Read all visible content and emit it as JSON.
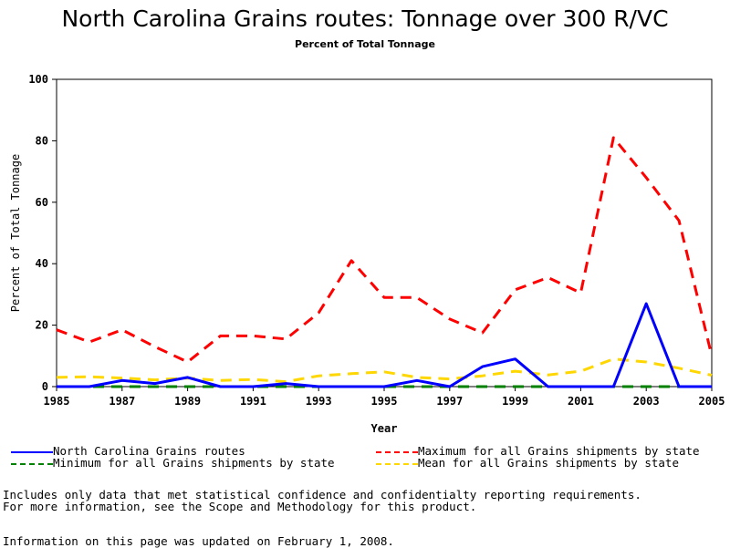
{
  "header": {
    "title": "North Carolina Grains routes: Tonnage over 300 R/VC",
    "subtitle": "Percent of Total Tonnage"
  },
  "chart_data": {
    "type": "line",
    "xlabel": "Year",
    "ylabel": "Percent of Total Tonnage",
    "xlim": [
      1985,
      2005
    ],
    "ylim": [
      0,
      100
    ],
    "x_ticks": [
      "1985",
      "1987",
      "1989",
      "1991",
      "1993",
      "1995",
      "1997",
      "1999",
      "2001",
      "2003",
      "2005"
    ],
    "y_ticks": [
      "0",
      "20",
      "40",
      "60",
      "80",
      "100"
    ],
    "grid": false,
    "legend_position": "bottom",
    "x": [
      1985,
      1986,
      1987,
      1988,
      1989,
      1990,
      1991,
      1992,
      1993,
      1994,
      1995,
      1996,
      1997,
      1998,
      1999,
      2000,
      2001,
      2002,
      2003,
      2004,
      2005
    ],
    "series": [
      {
        "name": "North Carolina Grains routes",
        "color": "#0000ff",
        "style": "solid",
        "values": [
          0,
          0,
          2,
          1,
          3,
          0,
          0,
          1,
          0,
          0,
          0,
          2,
          0,
          6.5,
          9,
          0,
          0,
          0,
          27,
          0,
          0
        ]
      },
      {
        "name": "Maximum for all Grains shipments by state",
        "color": "#ff0000",
        "style": "dashed",
        "values": [
          18.5,
          14.5,
          18.5,
          13,
          8,
          16.5,
          16.5,
          15.5,
          24,
          41,
          29,
          29,
          22,
          17.5,
          31.5,
          35.5,
          30.5,
          81,
          68,
          54,
          10
        ]
      },
      {
        "name": "Minimum for all Grains shipments by state",
        "color": "#008000",
        "style": "dashed",
        "values": [
          0,
          0,
          0,
          0,
          0,
          0,
          0,
          0,
          0,
          0,
          0,
          0,
          0,
          0,
          0,
          0,
          0,
          0,
          0,
          0,
          0
        ]
      },
      {
        "name": "Mean for all Grains shipments by state",
        "color": "#ffd700",
        "style": "dashed",
        "values": [
          3,
          3.2,
          2.8,
          2.2,
          2.8,
          2,
          2.3,
          1.6,
          3.5,
          4.2,
          4.8,
          3,
          2.5,
          3.5,
          5,
          3.8,
          5,
          9,
          8,
          6,
          3.7
        ]
      }
    ]
  },
  "notes": {
    "line1": "Includes only data that met statistical confidence and confidentialty reporting requirements.",
    "line2": "For more information, see the Scope and Methodology for this product.",
    "line3": "Information on this page was updated on February 1, 2008."
  }
}
